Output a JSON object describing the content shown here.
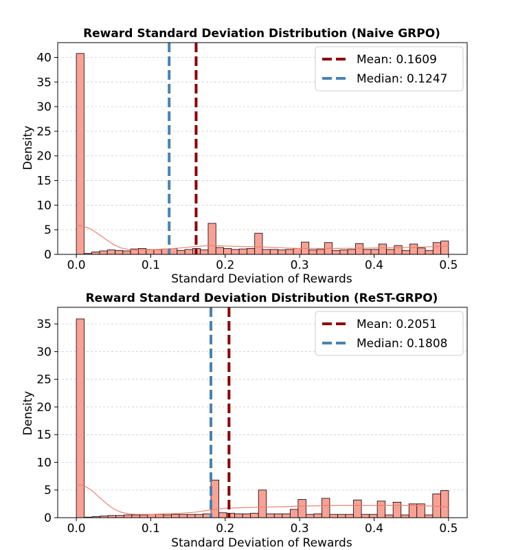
{
  "colors": {
    "bar_fill": "#f9a195",
    "bar_edge": "#000000",
    "kde_line": "#f08070",
    "mean_line": "#8b0000",
    "median_line": "#4682b4",
    "grid": "#cccccc"
  },
  "chart_data": [
    {
      "type": "bar",
      "title": "Reward Standard Deviation Distribution (Naive GRPO)",
      "xlabel": "Standard Deviation of Rewards",
      "ylabel": "Density",
      "xlim": [
        -0.025,
        0.525
      ],
      "ylim": [
        0,
        43
      ],
      "xticks": [
        "0.0",
        "0.1",
        "0.2",
        "0.3",
        "0.4",
        "0.5"
      ],
      "xtick_values": [
        0,
        0.1,
        0.2,
        0.3,
        0.4,
        0.5
      ],
      "yticks": [
        "0",
        "5",
        "10",
        "15",
        "20",
        "25",
        "30",
        "35",
        "40"
      ],
      "ytick_values": [
        0,
        5,
        10,
        15,
        20,
        25,
        30,
        35,
        40
      ],
      "grid": "horizontal dashed",
      "legend_position": "top-right",
      "bin_edges": [
        0.0,
        0.5
      ],
      "values": [
        40.8,
        0.2,
        0.5,
        0.7,
        0.9,
        0.8,
        0.7,
        1.1,
        1.2,
        1.0,
        1.0,
        1.1,
        1.2,
        0.8,
        1.0,
        1.2,
        0.9,
        6.3,
        1.4,
        1.2,
        1.0,
        1.1,
        1.2,
        4.3,
        1.0,
        1.0,
        0.9,
        1.0,
        1.2,
        2.5,
        0.9,
        1.0,
        2.4,
        0.8,
        0.9,
        1.0,
        2.2,
        1.0,
        1.0,
        2.1,
        1.0,
        1.8,
        0.8,
        2.1,
        1.3,
        0.8,
        2.4,
        2.7
      ],
      "kde": [
        [
          0.0,
          5.9
        ],
        [
          0.01,
          5.7
        ],
        [
          0.02,
          5.1
        ],
        [
          0.03,
          4.1
        ],
        [
          0.04,
          3.0
        ],
        [
          0.05,
          2.0
        ],
        [
          0.06,
          1.3
        ],
        [
          0.07,
          1.0
        ],
        [
          0.08,
          0.9
        ],
        [
          0.09,
          0.9
        ],
        [
          0.1,
          0.95
        ],
        [
          0.12,
          1.1
        ],
        [
          0.14,
          1.3
        ],
        [
          0.16,
          1.6
        ],
        [
          0.18,
          1.8
        ],
        [
          0.2,
          1.7
        ],
        [
          0.22,
          1.6
        ],
        [
          0.25,
          1.5
        ],
        [
          0.28,
          1.3
        ],
        [
          0.3,
          1.2
        ],
        [
          0.35,
          1.2
        ],
        [
          0.4,
          1.3
        ],
        [
          0.45,
          1.4
        ],
        [
          0.48,
          1.6
        ],
        [
          0.5,
          1.7
        ]
      ],
      "lines": [
        {
          "name": "Mean: 0.1609",
          "x": 0.1609,
          "style": "mean"
        },
        {
          "name": "Median: 0.1247",
          "x": 0.1247,
          "style": "median"
        }
      ]
    },
    {
      "type": "bar",
      "title": "Reward Standard Deviation Distribution (ReST-GRPO)",
      "xlabel": "Standard Deviation of Rewards",
      "ylabel": "Density",
      "xlim": [
        -0.025,
        0.525
      ],
      "ylim": [
        0,
        38
      ],
      "xticks": [
        "0.0",
        "0.1",
        "0.2",
        "0.3",
        "0.4",
        "0.5"
      ],
      "xtick_values": [
        0,
        0.1,
        0.2,
        0.3,
        0.4,
        0.5
      ],
      "yticks": [
        "0",
        "5",
        "10",
        "15",
        "20",
        "25",
        "30",
        "35"
      ],
      "ytick_values": [
        0,
        5,
        10,
        15,
        20,
        25,
        30,
        35
      ],
      "grid": "horizontal dashed",
      "legend_position": "top-right",
      "bin_edges": [
        0.0,
        0.5
      ],
      "values": [
        35.9,
        0.1,
        0.2,
        0.3,
        0.4,
        0.4,
        0.5,
        0.5,
        0.5,
        0.6,
        0.6,
        0.5,
        0.6,
        0.6,
        0.6,
        0.6,
        0.7,
        6.8,
        0.9,
        0.8,
        0.7,
        0.7,
        0.8,
        5.0,
        0.7,
        0.7,
        0.7,
        1.5,
        3.3,
        0.6,
        0.7,
        3.5,
        0.6,
        0.6,
        0.6,
        3.2,
        0.6,
        0.6,
        3.0,
        0.5,
        2.8,
        0.5,
        2.5,
        2.5,
        0.5,
        4.3,
        4.9
      ],
      "kde": [
        [
          0.0,
          6.0
        ],
        [
          0.01,
          5.8
        ],
        [
          0.02,
          5.0
        ],
        [
          0.03,
          3.8
        ],
        [
          0.04,
          2.6
        ],
        [
          0.05,
          1.6
        ],
        [
          0.06,
          1.0
        ],
        [
          0.07,
          0.7
        ],
        [
          0.08,
          0.6
        ],
        [
          0.1,
          0.6
        ],
        [
          0.12,
          0.7
        ],
        [
          0.14,
          0.8
        ],
        [
          0.16,
          1.0
        ],
        [
          0.18,
          1.4
        ],
        [
          0.2,
          1.7
        ],
        [
          0.22,
          1.8
        ],
        [
          0.25,
          1.9
        ],
        [
          0.28,
          2.0
        ],
        [
          0.3,
          2.1
        ],
        [
          0.35,
          2.2
        ],
        [
          0.4,
          2.2
        ],
        [
          0.45,
          2.2
        ],
        [
          0.48,
          2.1
        ],
        [
          0.5,
          1.9
        ]
      ],
      "lines": [
        {
          "name": "Mean: 0.2051",
          "x": 0.2051,
          "style": "mean"
        },
        {
          "name": "Median: 0.1808",
          "x": 0.1808,
          "style": "median"
        }
      ]
    }
  ]
}
